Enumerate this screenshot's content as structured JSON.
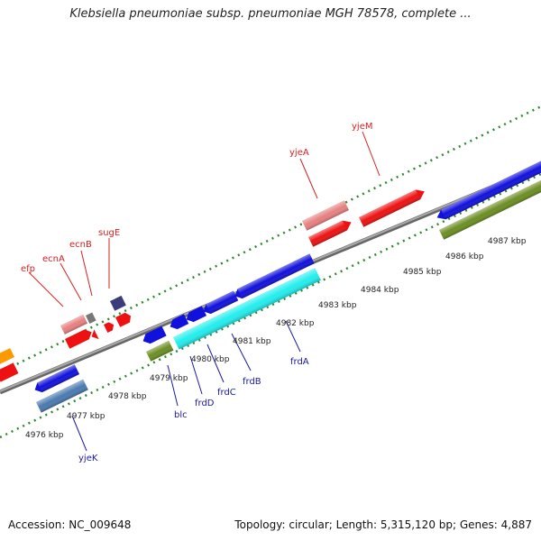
{
  "title": "Klebsiella pneumoniae subsp. pneumoniae MGH 78578, complete ...",
  "footer": {
    "accession": "Accession: NC_009648",
    "summary": "Topology: circular; Length: 5,315,120 bp; Genes: 4,887"
  },
  "ticks": [
    "4976 kbp",
    "4977 kbp",
    "4978 kbp",
    "4979 kbp",
    "4980 kbp",
    "4981 kbp",
    "4982 kbp",
    "4983 kbp",
    "4984 kbp",
    "4985 kbp",
    "4986 kbp",
    "4987 kbp"
  ],
  "genes_top": [
    "efp",
    "ecnA",
    "ecnB",
    "sugE",
    "yjeA",
    "yjeM"
  ],
  "genes_bottom": [
    "yjeK",
    "blc",
    "frdD",
    "frdC",
    "frdB",
    "frdA"
  ],
  "colors": {
    "red": "#ee1111",
    "pink": "#e88080",
    "blue": "#1111dd",
    "cyan": "#22eeee",
    "olive": "#6b8e23",
    "steel": "#4a7ab0",
    "navy": "#3c3c7a",
    "orange": "#ff9900",
    "backbone": "#808080",
    "tick": "#2a8a2a"
  }
}
